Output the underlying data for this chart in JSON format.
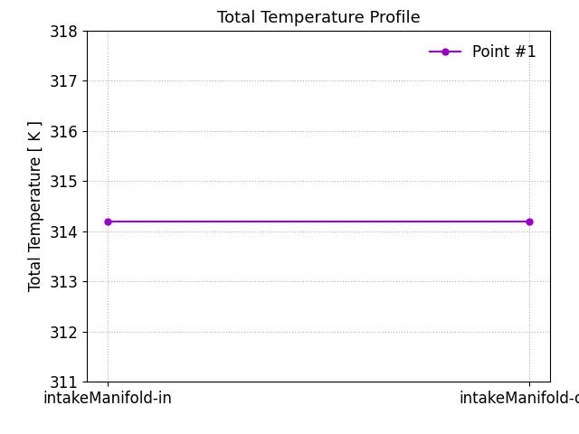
{
  "title": "Total Temperature Profile",
  "xlabel_ticks": [
    "intakeManifold-in",
    "intakeManifold-out"
  ],
  "ylabel": "Total Temperature [ K ]",
  "x_values": [
    0,
    1
  ],
  "y_values": [
    314.2,
    314.2
  ],
  "ylim": [
    311,
    318
  ],
  "yticks": [
    311,
    312,
    313,
    314,
    315,
    316,
    317,
    318
  ],
  "line_color": "#9900cc",
  "marker": "o",
  "markersize": 5,
  "linewidth": 1.5,
  "legend_label": "Point #1",
  "grid_color": "#b0b0b0",
  "grid_linestyle": ":",
  "background_color": "#ffffff",
  "title_fontsize": 13,
  "axis_label_fontsize": 12,
  "tick_fontsize": 12,
  "legend_fontsize": 12
}
